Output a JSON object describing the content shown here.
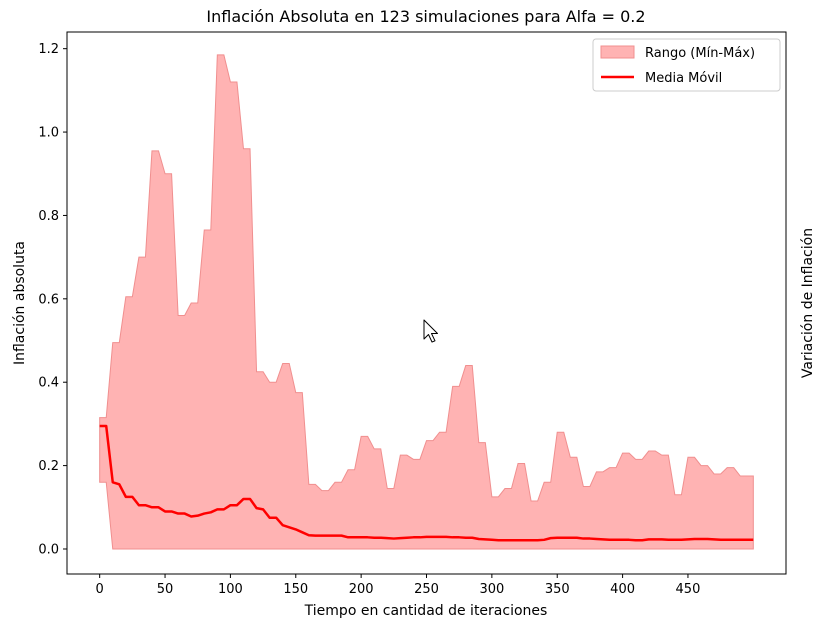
{
  "chart_data": {
    "type": "area",
    "title": "Inflación Absoluta en 123 simulaciones para Alfa = 0.2",
    "xlabel": "Tiempo en cantidad de iteraciones",
    "ylabel": "Inflación absoluta",
    "ylabel_right": "Variación de Inflación",
    "xlim": [
      -25,
      525
    ],
    "ylim": [
      -0.06,
      1.24
    ],
    "xticks": [
      0,
      50,
      100,
      150,
      200,
      250,
      300,
      350,
      400,
      450
    ],
    "yticks": [
      0.0,
      0.2,
      0.4,
      0.6,
      0.8,
      1.0,
      1.2
    ],
    "ytick_labels": [
      "0.0",
      "0.2",
      "0.4",
      "0.6",
      "0.8",
      "1.0",
      "1.2"
    ],
    "legend_position": "top-right",
    "colors": {
      "range_fill": "#ffb3b3",
      "range_edge": "#f08f8f",
      "mean_line": "#ff0000"
    },
    "series": [
      {
        "name": "Rango (Mín-Máx)",
        "kind": "range-band",
        "x": [
          0,
          5,
          10,
          15,
          20,
          25,
          30,
          35,
          40,
          45,
          50,
          55,
          60,
          65,
          70,
          75,
          80,
          85,
          90,
          95,
          100,
          105,
          110,
          115,
          120,
          125,
          130,
          135,
          140,
          145,
          150,
          155,
          160,
          165,
          170,
          175,
          180,
          185,
          190,
          195,
          200,
          205,
          210,
          215,
          220,
          225,
          230,
          235,
          240,
          245,
          250,
          255,
          260,
          265,
          270,
          275,
          280,
          285,
          290,
          295,
          300,
          305,
          310,
          315,
          320,
          325,
          330,
          335,
          340,
          345,
          350,
          355,
          360,
          365,
          370,
          375,
          380,
          385,
          390,
          395,
          400,
          405,
          410,
          415,
          420,
          425,
          430,
          435,
          440,
          445,
          450,
          455,
          460,
          465,
          470,
          475,
          480,
          485,
          490,
          495,
          500
        ],
        "min": [
          0.16,
          0.16,
          0.0,
          0.0,
          0.0,
          0.0,
          0.0,
          0.0,
          0.0,
          0.0,
          0.0,
          0.0,
          0.0,
          0.0,
          0.0,
          0.0,
          0.0,
          0.0,
          0.0,
          0.0,
          0.0,
          0.0,
          0.0,
          0.0,
          0.0,
          0.0,
          0.0,
          0.0,
          0.0,
          0.0,
          0.0,
          0.0,
          0.0,
          0.0,
          0.0,
          0.0,
          0.0,
          0.0,
          0.0,
          0.0,
          0.0,
          0.0,
          0.0,
          0.0,
          0.0,
          0.0,
          0.0,
          0.0,
          0.0,
          0.0,
          0.0,
          0.0,
          0.0,
          0.0,
          0.0,
          0.0,
          0.0,
          0.0,
          0.0,
          0.0,
          0.0,
          0.0,
          0.0,
          0.0,
          0.0,
          0.0,
          0.0,
          0.0,
          0.0,
          0.0,
          0.0,
          0.0,
          0.0,
          0.0,
          0.0,
          0.0,
          0.0,
          0.0,
          0.0,
          0.0,
          0.0,
          0.0,
          0.0,
          0.0,
          0.0,
          0.0,
          0.0,
          0.0,
          0.0,
          0.0,
          0.0,
          0.0,
          0.0,
          0.0,
          0.0,
          0.0,
          0.0,
          0.0,
          0.0,
          0.0,
          0.0
        ],
        "max": [
          0.315,
          0.315,
          0.495,
          0.495,
          0.605,
          0.605,
          0.7,
          0.7,
          0.955,
          0.955,
          0.9,
          0.9,
          0.56,
          0.56,
          0.59,
          0.59,
          0.765,
          0.765,
          1.185,
          1.185,
          1.12,
          1.12,
          0.96,
          0.96,
          0.425,
          0.425,
          0.4,
          0.4,
          0.445,
          0.445,
          0.375,
          0.375,
          0.155,
          0.155,
          0.14,
          0.14,
          0.16,
          0.16,
          0.19,
          0.19,
          0.27,
          0.27,
          0.24,
          0.24,
          0.145,
          0.145,
          0.225,
          0.225,
          0.215,
          0.215,
          0.26,
          0.26,
          0.28,
          0.28,
          0.39,
          0.39,
          0.44,
          0.44,
          0.255,
          0.255,
          0.125,
          0.125,
          0.145,
          0.145,
          0.205,
          0.205,
          0.115,
          0.115,
          0.16,
          0.16,
          0.28,
          0.28,
          0.22,
          0.22,
          0.15,
          0.15,
          0.185,
          0.185,
          0.195,
          0.195,
          0.23,
          0.23,
          0.215,
          0.215,
          0.235,
          0.235,
          0.225,
          0.225,
          0.13,
          0.13,
          0.22,
          0.22,
          0.2,
          0.2,
          0.18,
          0.18,
          0.195,
          0.195,
          0.175,
          0.175,
          0.175
        ]
      },
      {
        "name": "Media Móvil",
        "kind": "line",
        "x": [
          0,
          5,
          10,
          15,
          20,
          25,
          30,
          35,
          40,
          45,
          50,
          55,
          60,
          65,
          70,
          75,
          80,
          85,
          90,
          95,
          100,
          105,
          110,
          115,
          120,
          125,
          130,
          135,
          140,
          145,
          150,
          155,
          160,
          165,
          170,
          175,
          180,
          185,
          190,
          195,
          200,
          205,
          210,
          215,
          220,
          225,
          230,
          235,
          240,
          245,
          250,
          255,
          260,
          265,
          270,
          275,
          280,
          285,
          290,
          295,
          300,
          305,
          310,
          315,
          320,
          325,
          330,
          335,
          340,
          345,
          350,
          355,
          360,
          365,
          370,
          375,
          380,
          385,
          390,
          395,
          400,
          405,
          410,
          415,
          420,
          425,
          430,
          435,
          440,
          445,
          450,
          455,
          460,
          465,
          470,
          475,
          480,
          485,
          490,
          495,
          500
        ],
        "values": [
          0.295,
          0.295,
          0.16,
          0.155,
          0.125,
          0.125,
          0.105,
          0.105,
          0.1,
          0.1,
          0.09,
          0.09,
          0.085,
          0.085,
          0.078,
          0.08,
          0.085,
          0.088,
          0.095,
          0.095,
          0.105,
          0.105,
          0.12,
          0.12,
          0.098,
          0.095,
          0.075,
          0.075,
          0.057,
          0.052,
          0.047,
          0.04,
          0.033,
          0.032,
          0.032,
          0.032,
          0.032,
          0.032,
          0.028,
          0.028,
          0.028,
          0.028,
          0.027,
          0.027,
          0.026,
          0.025,
          0.026,
          0.027,
          0.028,
          0.028,
          0.029,
          0.029,
          0.029,
          0.029,
          0.028,
          0.028,
          0.027,
          0.027,
          0.024,
          0.023,
          0.022,
          0.021,
          0.021,
          0.021,
          0.021,
          0.021,
          0.021,
          0.021,
          0.022,
          0.026,
          0.027,
          0.027,
          0.027,
          0.027,
          0.025,
          0.025,
          0.024,
          0.023,
          0.022,
          0.022,
          0.022,
          0.022,
          0.021,
          0.021,
          0.023,
          0.023,
          0.023,
          0.022,
          0.022,
          0.022,
          0.023,
          0.024,
          0.024,
          0.024,
          0.023,
          0.022,
          0.022,
          0.022,
          0.022,
          0.022,
          0.022
        ]
      }
    ]
  }
}
